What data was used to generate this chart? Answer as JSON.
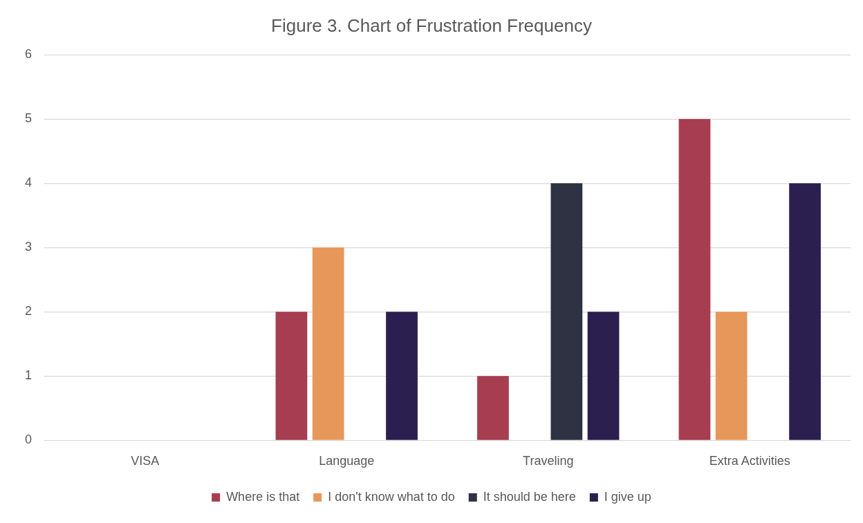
{
  "chart_data": {
    "type": "bar",
    "title": "Figure 3. Chart of Frustration Frequency",
    "categories": [
      "VISA",
      "Language",
      "Traveling",
      "Extra Activities"
    ],
    "series": [
      {
        "name": "Where is that",
        "color": "#a63d50",
        "values": [
          0,
          2,
          1,
          5
        ]
      },
      {
        "name": "I don't know what to do",
        "color": "#e8975a",
        "values": [
          0,
          3,
          0,
          2
        ]
      },
      {
        "name": "It should be here",
        "color": "#2e3243",
        "values": [
          0,
          0,
          4,
          0
        ]
      },
      {
        "name": "I give up",
        "color": "#2b1f50",
        "values": [
          0,
          2,
          2,
          4
        ]
      }
    ],
    "ylim": [
      0,
      6
    ],
    "yticks": [
      0,
      1,
      2,
      3,
      4,
      5,
      6
    ],
    "grid": "y",
    "legend": "bottom"
  }
}
